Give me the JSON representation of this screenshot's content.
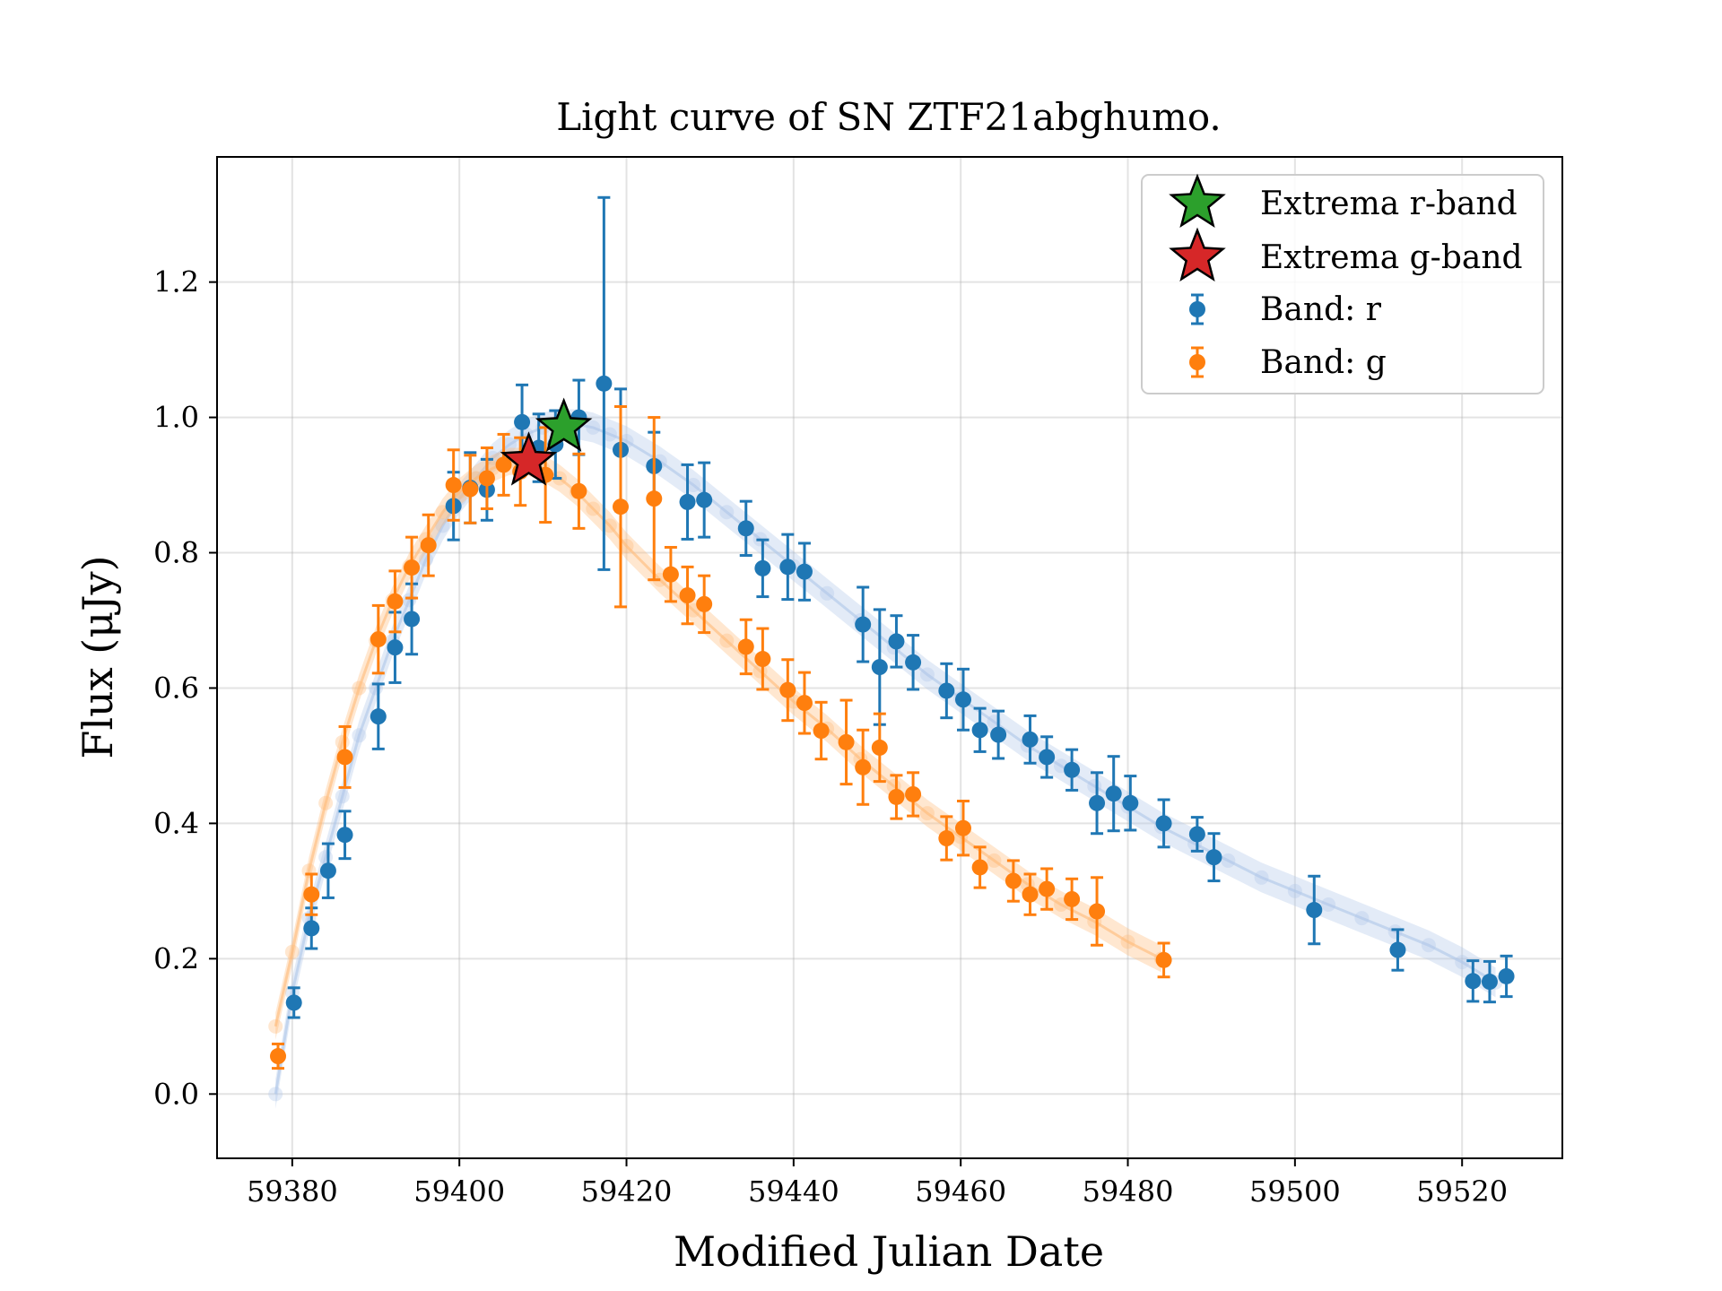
{
  "chart_data": {
    "type": "scatter",
    "title": "Light curve of SN ZTF21abghumo.",
    "xlabel": "Modified Julian Date",
    "ylabel": "Flux (μJy)",
    "xlim": [
      59371,
      59532
    ],
    "ylim": [
      -0.095,
      1.385
    ],
    "x_ticks": [
      59380,
      59400,
      59420,
      59440,
      59460,
      59480,
      59500,
      59520
    ],
    "y_ticks": [
      0.0,
      0.2,
      0.4,
      0.6,
      0.8,
      1.0,
      1.2
    ],
    "grid": true,
    "legend_position": "top-right",
    "colors": {
      "r_band": "#1f77b4",
      "g_band": "#ff7f0e",
      "extrema_r": "#2ca02c",
      "extrema_g": "#d62728",
      "fit_r": "#aec7e8",
      "fit_g": "#ffbb78"
    },
    "legend": [
      {
        "label": "Extrema r-band",
        "marker": "star",
        "color": "#2ca02c"
      },
      {
        "label": "Extrema g-band",
        "marker": "star",
        "color": "#d62728"
      },
      {
        "label": "Band: r",
        "marker": "errorbar",
        "color": "#1f77b4"
      },
      {
        "label": "Band: g",
        "marker": "errorbar",
        "color": "#ff7f0e"
      }
    ],
    "extrema": [
      {
        "band": "r",
        "x": 59412.5,
        "y": 0.985
      },
      {
        "band": "g",
        "x": 59408.3,
        "y": 0.935
      }
    ],
    "series": [
      {
        "name": "Band: r",
        "color": "#1f77b4",
        "points": [
          [
            59380.2,
            0.135,
            0.022
          ],
          [
            59382.3,
            0.245,
            0.03
          ],
          [
            59384.3,
            0.33,
            0.04
          ],
          [
            59386.3,
            0.383,
            0.035
          ],
          [
            59390.3,
            0.558,
            0.048
          ],
          [
            59392.3,
            0.66,
            0.052
          ],
          [
            59394.3,
            0.702,
            0.052
          ],
          [
            59399.3,
            0.869,
            0.05
          ],
          [
            59401.3,
            0.896,
            0.052
          ],
          [
            59403.3,
            0.893,
            0.045
          ],
          [
            59407.5,
            0.993,
            0.055
          ],
          [
            59409.5,
            0.955,
            0.05
          ],
          [
            59411.5,
            0.96,
            0.05
          ],
          [
            59414.3,
            1.0,
            0.055
          ],
          [
            59417.3,
            1.05,
            0.275
          ],
          [
            59419.3,
            0.952,
            0.09
          ],
          [
            59423.3,
            0.928,
            0.05
          ],
          [
            59427.3,
            0.875,
            0.055
          ],
          [
            59429.3,
            0.878,
            0.055
          ],
          [
            59434.3,
            0.836,
            0.04
          ],
          [
            59436.3,
            0.777,
            0.042
          ],
          [
            59439.3,
            0.779,
            0.048
          ],
          [
            59441.3,
            0.772,
            0.042
          ],
          [
            59448.3,
            0.694,
            0.055
          ],
          [
            59450.3,
            0.631,
            0.085
          ],
          [
            59452.3,
            0.669,
            0.038
          ],
          [
            59454.3,
            0.638,
            0.04
          ],
          [
            59458.3,
            0.596,
            0.04
          ],
          [
            59460.3,
            0.583,
            0.045
          ],
          [
            59462.3,
            0.538,
            0.032
          ],
          [
            59464.5,
            0.531,
            0.035
          ],
          [
            59468.3,
            0.524,
            0.035
          ],
          [
            59470.3,
            0.498,
            0.03
          ],
          [
            59473.3,
            0.479,
            0.03
          ],
          [
            59476.3,
            0.43,
            0.045
          ],
          [
            59478.3,
            0.444,
            0.055
          ],
          [
            59480.3,
            0.43,
            0.04
          ],
          [
            59484.3,
            0.4,
            0.035
          ],
          [
            59488.3,
            0.384,
            0.025
          ],
          [
            59490.3,
            0.35,
            0.035
          ],
          [
            59502.3,
            0.272,
            0.05
          ],
          [
            59512.3,
            0.213,
            0.03
          ],
          [
            59521.3,
            0.167,
            0.03
          ],
          [
            59523.3,
            0.166,
            0.03
          ],
          [
            59525.3,
            0.174,
            0.03
          ]
        ]
      },
      {
        "name": "Band: g",
        "color": "#ff7f0e",
        "points": [
          [
            59378.3,
            0.056,
            0.018
          ],
          [
            59382.3,
            0.295,
            0.03
          ],
          [
            59386.3,
            0.498,
            0.045
          ],
          [
            59390.3,
            0.672,
            0.05
          ],
          [
            59392.3,
            0.728,
            0.045
          ],
          [
            59394.3,
            0.778,
            0.045
          ],
          [
            59396.3,
            0.811,
            0.045
          ],
          [
            59399.3,
            0.9,
            0.052
          ],
          [
            59401.3,
            0.894,
            0.05
          ],
          [
            59403.3,
            0.91,
            0.045
          ],
          [
            59405.3,
            0.93,
            0.045
          ],
          [
            59407.3,
            0.92,
            0.05
          ],
          [
            59410.3,
            0.915,
            0.07
          ],
          [
            59414.3,
            0.891,
            0.055
          ],
          [
            59419.3,
            0.868,
            0.148
          ],
          [
            59423.3,
            0.88,
            0.12
          ],
          [
            59425.3,
            0.768,
            0.04
          ],
          [
            59427.3,
            0.737,
            0.042
          ],
          [
            59429.3,
            0.724,
            0.042
          ],
          [
            59434.3,
            0.661,
            0.04
          ],
          [
            59436.3,
            0.643,
            0.045
          ],
          [
            59439.3,
            0.597,
            0.045
          ],
          [
            59441.3,
            0.578,
            0.045
          ],
          [
            59443.3,
            0.537,
            0.042
          ],
          [
            59446.3,
            0.52,
            0.062
          ],
          [
            59448.3,
            0.483,
            0.055
          ],
          [
            59450.3,
            0.512,
            0.05
          ],
          [
            59452.3,
            0.439,
            0.032
          ],
          [
            59454.3,
            0.443,
            0.032
          ],
          [
            59458.3,
            0.378,
            0.032
          ],
          [
            59460.3,
            0.393,
            0.04
          ],
          [
            59462.3,
            0.335,
            0.03
          ],
          [
            59466.3,
            0.315,
            0.03
          ],
          [
            59468.3,
            0.295,
            0.03
          ],
          [
            59470.3,
            0.303,
            0.03
          ],
          [
            59473.3,
            0.288,
            0.03
          ],
          [
            59476.3,
            0.27,
            0.05
          ],
          [
            59484.3,
            0.198,
            0.025
          ]
        ]
      }
    ],
    "fit": [
      {
        "band": "r",
        "color": "#aec7e8",
        "x": [
          59378,
          59380,
          59382,
          59384,
          59386,
          59388,
          59390,
          59392,
          59394,
          59396,
          59398,
          59400,
          59402,
          59404,
          59406,
          59408,
          59410,
          59412,
          59414,
          59416,
          59418,
          59420,
          59424,
          59428,
          59432,
          59436,
          59440,
          59444,
          59448,
          59452,
          59456,
          59460,
          59464,
          59468,
          59472,
          59476,
          59480,
          59484,
          59488,
          59492,
          59496,
          59500,
          59504,
          59508,
          59512,
          59516,
          59520,
          59524
        ],
        "y": [
          0.0,
          0.15,
          0.26,
          0.35,
          0.44,
          0.53,
          0.6,
          0.67,
          0.73,
          0.79,
          0.84,
          0.88,
          0.91,
          0.94,
          0.96,
          0.975,
          0.985,
          0.99,
          0.99,
          0.985,
          0.975,
          0.965,
          0.935,
          0.9,
          0.86,
          0.82,
          0.78,
          0.74,
          0.7,
          0.66,
          0.62,
          0.585,
          0.55,
          0.515,
          0.485,
          0.455,
          0.425,
          0.395,
          0.37,
          0.345,
          0.32,
          0.3,
          0.28,
          0.26,
          0.24,
          0.22,
          0.195,
          0.165
        ],
        "band_halfwidth": 0.022
      },
      {
        "band": "g",
        "color": "#ffbb78",
        "x": [
          59378,
          59380,
          59382,
          59384,
          59386,
          59388,
          59390,
          59392,
          59394,
          59396,
          59398,
          59400,
          59402,
          59404,
          59406,
          59408,
          59410,
          59412,
          59414,
          59416,
          59418,
          59420,
          59424,
          59428,
          59432,
          59436,
          59440,
          59444,
          59448,
          59452,
          59456,
          59460,
          59464,
          59468,
          59472,
          59476,
          59480,
          59484
        ],
        "y": [
          0.1,
          0.21,
          0.33,
          0.43,
          0.52,
          0.6,
          0.67,
          0.73,
          0.78,
          0.82,
          0.86,
          0.89,
          0.91,
          0.925,
          0.935,
          0.935,
          0.925,
          0.91,
          0.89,
          0.865,
          0.84,
          0.81,
          0.76,
          0.715,
          0.67,
          0.625,
          0.58,
          0.54,
          0.495,
          0.455,
          0.415,
          0.38,
          0.345,
          0.31,
          0.28,
          0.255,
          0.225,
          0.2
        ],
        "band_halfwidth": 0.02
      }
    ]
  }
}
